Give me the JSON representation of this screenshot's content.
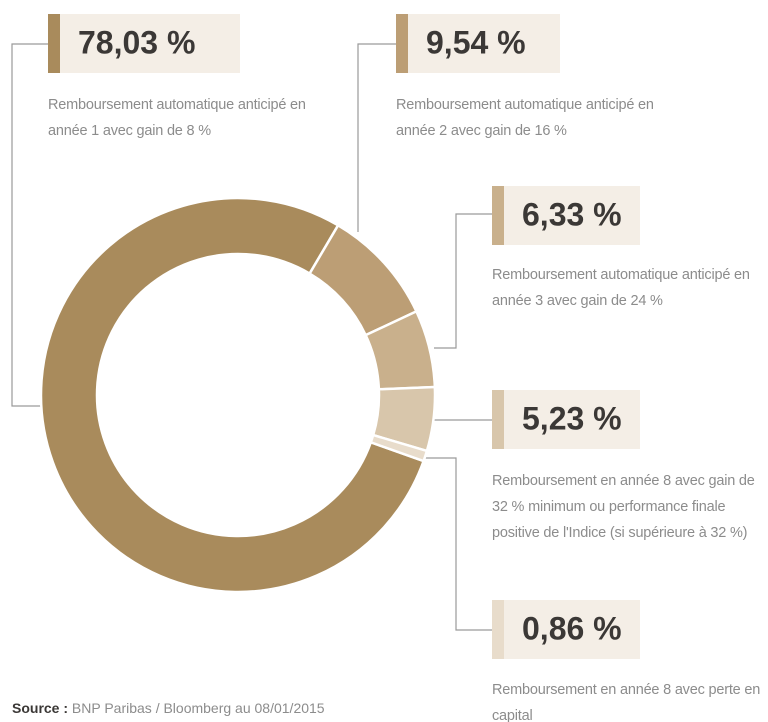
{
  "chart_data": {
    "type": "donut",
    "categories": [
      "Remboursement automatique anticipé en année 1 avec gain de 8 %",
      "Remboursement automatique anticipé en année 2 avec gain de 16 %",
      "Remboursement automatique anticipé en année 3 avec gain de 24 %",
      "Remboursement en année 8 avec gain de 32 % minimum ou performance finale positive de l'Indice (si supérieure à 32 %)",
      "Remboursement en année 8 avec perte en capital"
    ],
    "values": [
      78.03,
      9.54,
      6.33,
      5.23,
      0.86
    ],
    "value_labels": [
      "78,03 %",
      "9,54 %",
      "6,33 %",
      "5,23 %",
      "0,86 %"
    ],
    "colors": [
      "#a98b5c",
      "#bc9e75",
      "#c9b08c",
      "#d8c6ab",
      "#e8dccb"
    ],
    "source_label": "Source :",
    "source": "BNP Paribas / Bloomberg au 08/01/2015"
  }
}
